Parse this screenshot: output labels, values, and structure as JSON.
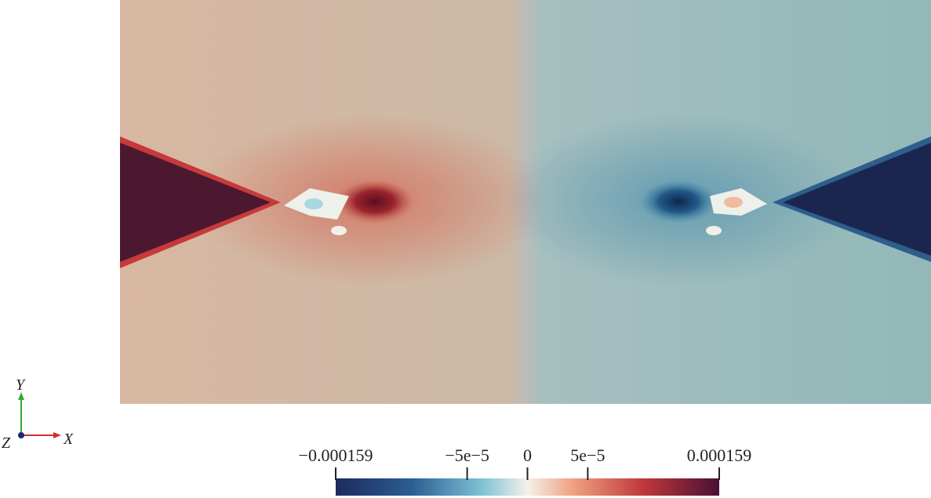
{
  "colorbar": {
    "range": [
      -0.000159,
      0.000159
    ],
    "ticks": [
      {
        "value": -0.000159,
        "label": "−0.000159"
      },
      {
        "value": -5e-05,
        "label": "−5e−5"
      },
      {
        "value": 0,
        "label": "0"
      },
      {
        "value": 5e-05,
        "label": "5e−5"
      },
      {
        "value": 0.000159,
        "label": "0.000159"
      }
    ]
  },
  "axes_triad": {
    "x": "X",
    "y": "Y",
    "z": "Z"
  }
}
